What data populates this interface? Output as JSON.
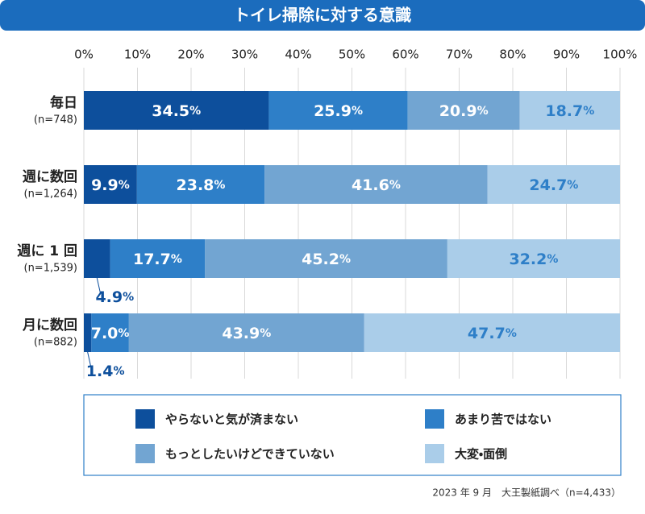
{
  "chart_data": {
    "type": "stacked-barh",
    "title": "トイレ掃除に対する意識",
    "categories": [
      "毎日",
      "週に数回",
      "週に 1 回",
      "月に数回"
    ],
    "category_notes": [
      "(n=748)",
      "(n=1,264)",
      "(n=1,539)",
      "(n=882)"
    ],
    "series": [
      {
        "name": "やらないと気が済まない",
        "color": "#0d4f9c",
        "label_color": "#ffffff",
        "values": [
          34.5,
          9.9,
          4.9,
          1.4
        ],
        "value_labels": [
          "34.5%",
          "9.9%",
          "4.9%",
          "1.4%"
        ]
      },
      {
        "name": "あまり苦ではない",
        "color": "#2e7fc8",
        "label_color": "#ffffff",
        "values": [
          25.9,
          23.8,
          17.7,
          7.0
        ],
        "value_labels": [
          "25.9%",
          "23.8%",
          "17.7%",
          "7.0%"
        ]
      },
      {
        "name": "もっとしたいけどできていない",
        "color": "#72a5d2",
        "label_color": "#ffffff",
        "values": [
          20.9,
          41.6,
          45.2,
          43.9
        ],
        "value_labels": [
          "20.9%",
          "41.6%",
          "45.2%",
          "43.9%"
        ]
      },
      {
        "name": "大変・面倒",
        "color": "#aacde9",
        "label_color": "#2e7fc8",
        "values": [
          18.7,
          24.7,
          32.2,
          47.7
        ],
        "value_labels": [
          "18.7%",
          "24.7%",
          "32.2%",
          "47.7%"
        ]
      }
    ],
    "xlim": [
      0,
      100
    ],
    "xticks": [
      {
        "value": 0,
        "label": "0%"
      },
      {
        "value": 10,
        "label": "10%"
      },
      {
        "value": 20,
        "label": "20%"
      },
      {
        "value": 30,
        "label": "30%"
      },
      {
        "value": 40,
        "label": "40%"
      },
      {
        "value": 50,
        "label": "50%"
      },
      {
        "value": 60,
        "label": "60%"
      },
      {
        "value": 70,
        "label": "70%"
      },
      {
        "value": 80,
        "label": "80%"
      },
      {
        "value": 90,
        "label": "90%"
      },
      {
        "value": 100,
        "label": "100%"
      }
    ],
    "grid": true,
    "source": "2023 年 9 月　大王製紙調べ（n=4,433）"
  }
}
